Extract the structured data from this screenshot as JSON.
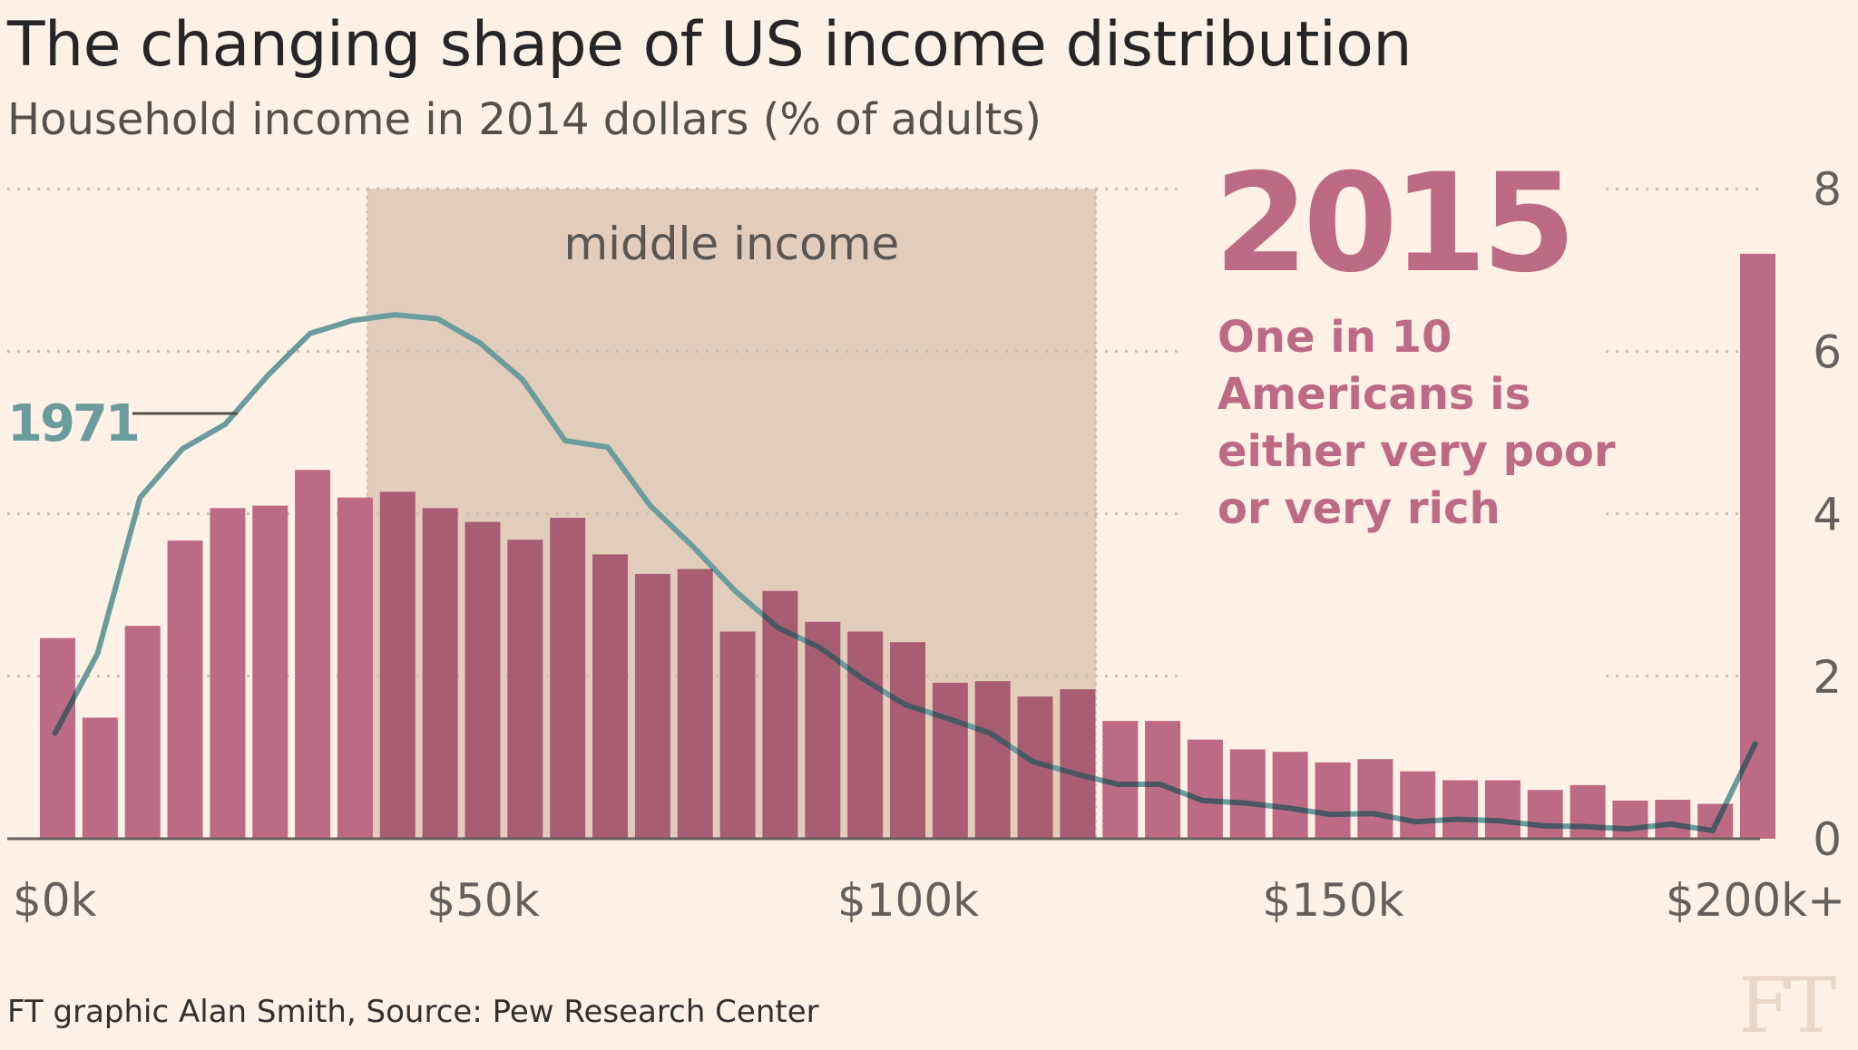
{
  "header": {
    "title": "The changing shape of US income distribution",
    "subtitle": "Household income in 2014 dollars (% of adults)"
  },
  "footer": {
    "source": "FT graphic Alan Smith, Source: Pew Research Center",
    "logo": "FT"
  },
  "colors": {
    "background": "#fff1e5",
    "bar_2015": "#bd6a84",
    "bar_2015_middle": "#a85d73",
    "line_1971": "#6b9c9d",
    "line_1971_over_bars": "#4a5660",
    "middle_band": "#e2cdbd",
    "annotation": "#bd6a84"
  },
  "chart_data": {
    "type": "bar",
    "title": "The changing shape of US income distribution",
    "subtitle": "Household income in 2014 dollars (% of adults)",
    "xlabel": "",
    "ylabel": "% of adults",
    "ylim": [
      0,
      8
    ],
    "yticks": [
      0,
      2,
      4,
      6,
      8
    ],
    "ytick_labels": [
      "0",
      "2",
      "4",
      "6",
      "8"
    ],
    "xlim_k": [
      0,
      205
    ],
    "xticks_k": [
      0,
      50,
      100,
      150,
      200
    ],
    "xtick_labels": [
      "$0k",
      "$50k",
      "$100k",
      "$150k",
      "$200k+"
    ],
    "grid": true,
    "bin_width_k": 5,
    "series": [
      {
        "name": "2015",
        "type": "bar",
        "x_k": [
          0,
          5,
          10,
          15,
          20,
          25,
          30,
          35,
          40,
          45,
          50,
          55,
          60,
          65,
          70,
          75,
          80,
          85,
          90,
          95,
          100,
          105,
          110,
          115,
          120,
          125,
          130,
          135,
          140,
          145,
          150,
          155,
          160,
          165,
          170,
          175,
          180,
          185,
          190,
          195,
          200
        ],
        "values": [
          2.47,
          1.49,
          2.62,
          3.67,
          4.07,
          4.1,
          4.54,
          4.2,
          4.27,
          4.07,
          3.9,
          3.68,
          3.95,
          3.5,
          3.26,
          3.32,
          2.55,
          3.05,
          2.67,
          2.55,
          2.42,
          1.92,
          1.94,
          1.75,
          1.84,
          1.45,
          1.45,
          1.22,
          1.1,
          1.07,
          0.94,
          0.98,
          0.83,
          0.72,
          0.72,
          0.6,
          0.66,
          0.47,
          0.48,
          0.43,
          7.2
        ]
      },
      {
        "name": "1971",
        "type": "line",
        "x_k": [
          2,
          7,
          12,
          17,
          22,
          27,
          32,
          37,
          42,
          47,
          52,
          57,
          62,
          67,
          72,
          77,
          82,
          87,
          92,
          97,
          102,
          107,
          112,
          117,
          122,
          127,
          132,
          137,
          142,
          147,
          152,
          157,
          162,
          167,
          172,
          177,
          182,
          187,
          192,
          197,
          202
        ],
        "values": [
          1.3,
          2.28,
          4.2,
          4.8,
          5.1,
          5.7,
          6.22,
          6.38,
          6.45,
          6.4,
          6.1,
          5.65,
          4.9,
          4.82,
          4.1,
          3.6,
          3.05,
          2.6,
          2.35,
          1.97,
          1.65,
          1.48,
          1.3,
          0.95,
          0.8,
          0.67,
          0.67,
          0.47,
          0.44,
          0.38,
          0.3,
          0.31,
          0.21,
          0.24,
          0.22,
          0.16,
          0.15,
          0.12,
          0.18,
          0.1,
          1.17
        ]
      }
    ],
    "shaded_band": {
      "label": "middle income",
      "x_start_k": 40,
      "x_end_k": 124
    },
    "annotations": {
      "year_big": "2015",
      "lines": [
        "One in 10",
        "Americans is",
        "either very poor",
        "or very rich"
      ],
      "series_label_1971": "1971"
    }
  }
}
